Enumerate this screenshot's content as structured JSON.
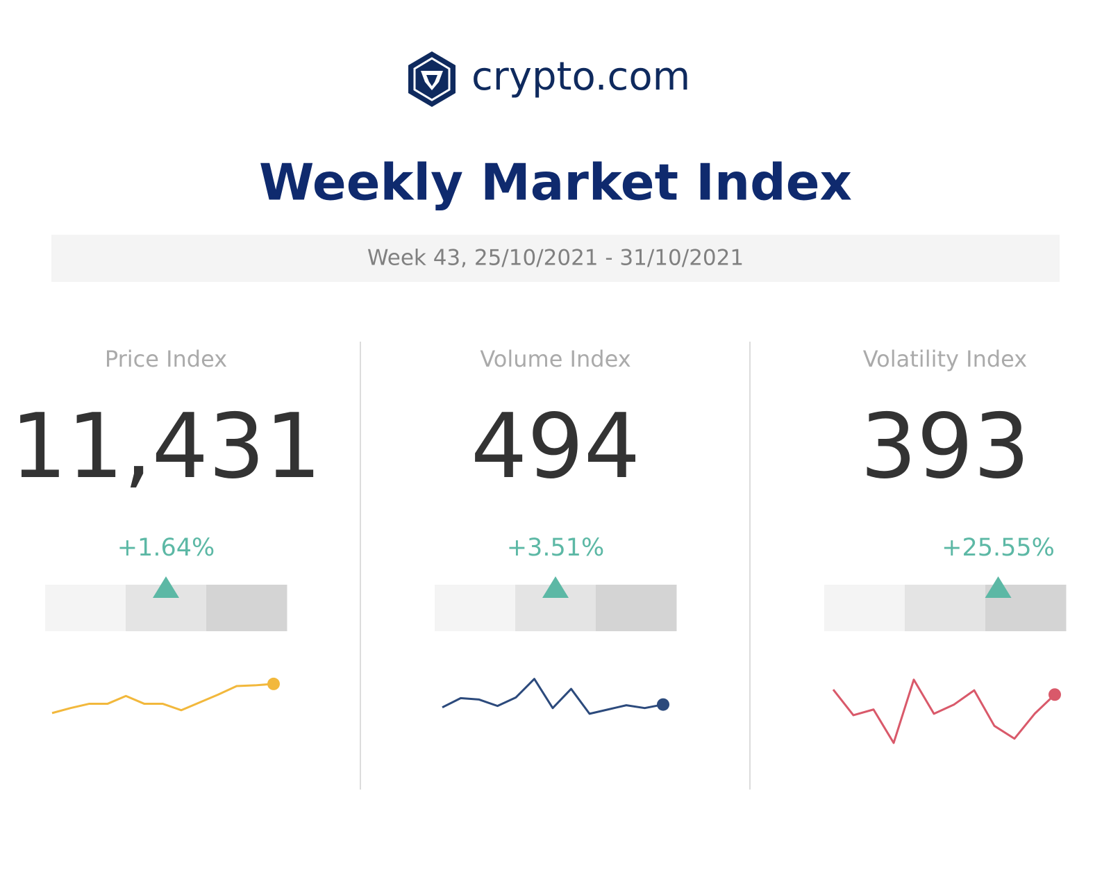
{
  "header": {
    "logo_text": "crypto.com",
    "title": "Weekly Market Index",
    "subtitle": "Week 43, 25/10/2021 - 31/10/2021"
  },
  "panels": [
    {
      "label": "Price Index",
      "value": "11,431",
      "change": "+1.64%",
      "chart_data": {
        "type": "line",
        "color": "#f2b83c",
        "values": [
          47,
          54,
          60,
          60,
          71,
          60,
          60,
          51,
          62,
          73,
          85,
          86,
          88
        ]
      }
    },
    {
      "label": "Volume Index",
      "value": "494",
      "change": "+3.51%",
      "chart_data": {
        "type": "line",
        "color": "#2c4a7c",
        "values": [
          55,
          68,
          66,
          57,
          69,
          95,
          54,
          81,
          46,
          52,
          58,
          54,
          59
        ]
      }
    },
    {
      "label": "Volatility Index",
      "value": "393",
      "change": "+25.55%",
      "chart_data": {
        "type": "line",
        "color": "#d9596a",
        "values": [
          80,
          44,
          52,
          5,
          94,
          46,
          59,
          79,
          29,
          11,
          46,
          73
        ]
      }
    }
  ]
}
